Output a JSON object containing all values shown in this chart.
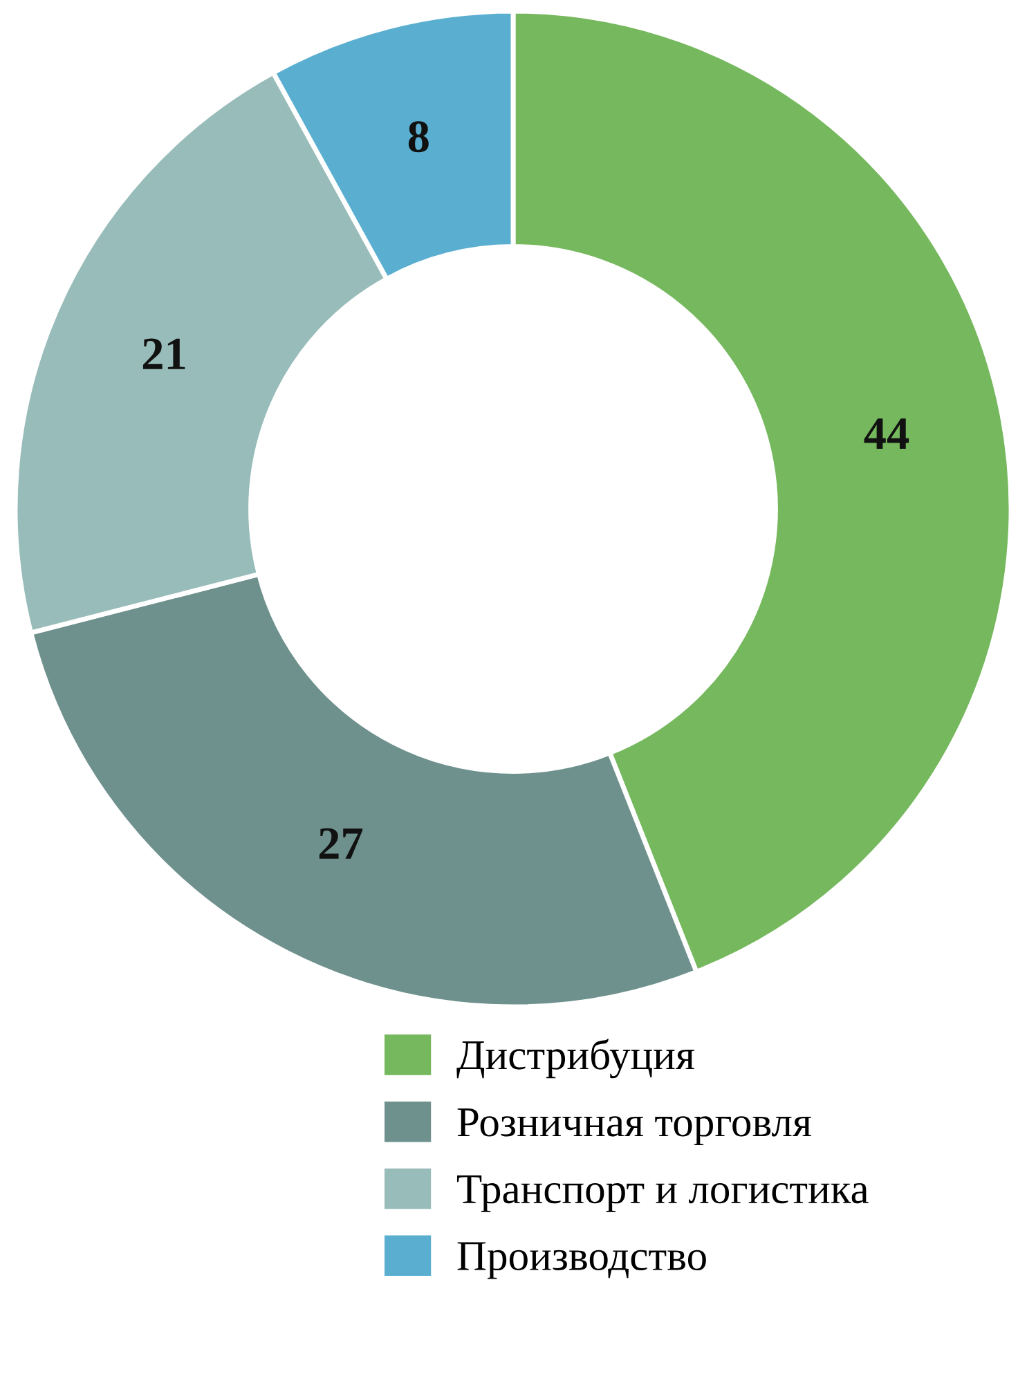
{
  "chart_data": {
    "type": "donut",
    "categories": [
      "Дистрибуция",
      "Розничная торговля",
      "Транспорт и логистика",
      "Производство"
    ],
    "values": [
      44,
      27,
      21,
      8
    ],
    "colors": [
      "#75b85d",
      "#6e918d",
      "#98bcb9",
      "#5aafd0"
    ],
    "data_labels": true,
    "legend": "bottom right"
  }
}
